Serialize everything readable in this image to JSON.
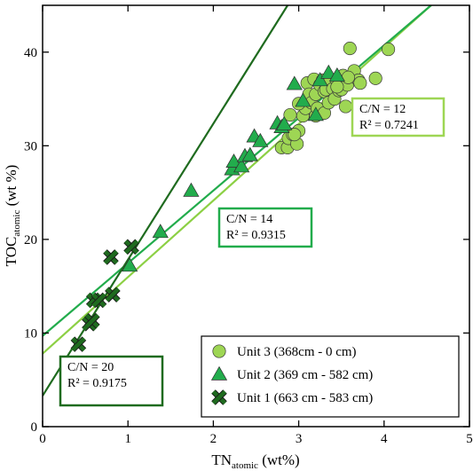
{
  "chart_data": {
    "type": "scatter",
    "xlabel": {
      "main": "TN",
      "sub": "atomic",
      "unit": " (wt%)"
    },
    "ylabel": {
      "main": "TOC",
      "sub": "atomic",
      "unit": " (wt %)"
    },
    "xlim": [
      0,
      5
    ],
    "ylim": [
      0,
      45
    ],
    "x_ticks": [
      0,
      1,
      2,
      3,
      4,
      5
    ],
    "y_ticks": [
      0,
      10,
      20,
      30,
      40
    ],
    "colors": {
      "unit3": "#9ED654",
      "unit3_line": "#8CD044",
      "unit2": "#22AC4C",
      "unit1": "#1F6B1F",
      "axis": "#000000"
    },
    "series": [
      {
        "name": "Unit 3 (368cm - 0 cm)",
        "marker": "circle",
        "color": "#9ED654",
        "x": [
          2.8,
          2.87,
          2.88,
          2.93,
          2.98,
          3.0,
          3.05,
          3.08,
          3.1,
          3.12,
          3.15,
          3.18,
          3.2,
          3.2,
          3.22,
          3.25,
          3.28,
          3.3,
          3.3,
          3.32,
          3.35,
          3.37,
          3.4,
          3.42,
          3.45,
          3.47,
          3.5,
          3.52,
          3.55,
          3.57,
          3.6,
          3.65,
          3.7,
          3.72,
          3.9,
          4.05,
          2.9,
          2.95,
          3.0,
          3.45,
          3.58
        ],
        "y": [
          29.8,
          29.8,
          30.8,
          31.2,
          30.2,
          31.6,
          33.2,
          34.0,
          36.7,
          35.5,
          34.6,
          37.1,
          33.2,
          35.5,
          34.0,
          36.5,
          37.0,
          35.8,
          33.5,
          36.0,
          34.6,
          37.1,
          36.1,
          35.0,
          36.9,
          35.9,
          36.0,
          37.5,
          34.2,
          36.5,
          40.4,
          38.0,
          37.0,
          36.7,
          37.2,
          40.3,
          33.3,
          31.2,
          34.5,
          36.3,
          37.3
        ]
      },
      {
        "name": "Unit 2 (369 cm - 582 cm)",
        "marker": "triangle",
        "color": "#22AC4C",
        "x": [
          1.02,
          1.38,
          1.74,
          2.22,
          2.24,
          2.33,
          2.37,
          2.43,
          2.48,
          2.55,
          2.75,
          2.8,
          2.83,
          2.95,
          3.05,
          3.2,
          3.25,
          3.35,
          3.45
        ],
        "y": [
          17.2,
          20.8,
          25.2,
          27.5,
          28.3,
          27.8,
          28.9,
          29.0,
          31.0,
          30.5,
          32.4,
          32.0,
          32.3,
          36.6,
          34.8,
          33.3,
          37.0,
          37.8,
          37.5
        ]
      },
      {
        "name": "Unit 1 (663 cm - 583 cm)",
        "marker": "cross",
        "color": "#1F6B1F",
        "x": [
          0.42,
          0.55,
          0.58,
          0.6,
          0.66,
          0.8,
          0.82,
          1.04
        ],
        "y": [
          8.8,
          11.0,
          11.3,
          13.5,
          13.5,
          18.1,
          14.1,
          19.2
        ]
      }
    ],
    "regressions": [
      {
        "label": "Unit 3 fit",
        "color": "#8CD044",
        "x0": 0,
        "y0": 7.8,
        "x1": 4.55,
        "y1": 45
      },
      {
        "label": "Unit 2 fit",
        "color": "#22AC4C",
        "x0": 0,
        "y0": 9.7,
        "x1": 4.55,
        "y1": 45
      },
      {
        "label": "Unit 1 fit",
        "color": "#1F6B1F",
        "x0": 0,
        "y0": 3.3,
        "x1": 2.87,
        "y1": 45
      }
    ],
    "annotations": [
      {
        "line1": "C/N = 12",
        "line2": "R² = 0.7241",
        "color": "#9ED654",
        "position": "right"
      },
      {
        "line1": "C/N = 14",
        "line2": "R² = 0.9315",
        "color": "#22AC4C",
        "position": "center"
      },
      {
        "line1": "C/N = 20",
        "line2": "R² = 0.9175",
        "color": "#1F6B1F",
        "position": "bottom-left"
      }
    ],
    "legend_position": "bottom-right",
    "grid": false
  }
}
